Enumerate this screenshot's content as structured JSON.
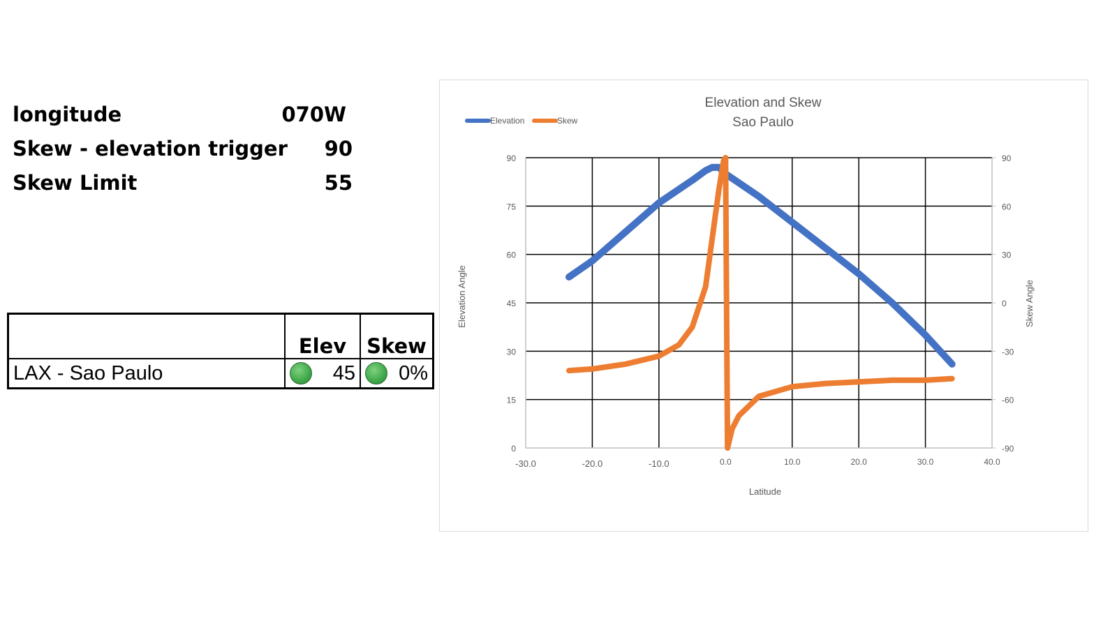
{
  "params": [
    {
      "label": "longitude",
      "value": "070W"
    },
    {
      "label": "Skew - elevation trigger",
      "value": "90"
    },
    {
      "label": "Skew Limit",
      "value": "55"
    }
  ],
  "status_table": {
    "headers": [
      "",
      "Elev",
      "Skew"
    ],
    "rows": [
      {
        "name": "LAX - Sao Paulo",
        "elev": "45",
        "elev_status": "green",
        "skew": "0%",
        "skew_status": "green"
      }
    ]
  },
  "colors": {
    "elevation": "#4472c4",
    "skew": "#ed7d31",
    "status_green": "#3fa84a"
  },
  "chart_data": {
    "type": "line",
    "title": "Elevation and Skew",
    "subtitle": "Sao Paulo",
    "xlabel": "Latitude",
    "ylabel": "Elevation Angle",
    "y2label": "Skew Angle",
    "xlim": [
      -30,
      40
    ],
    "ylim": [
      0,
      90
    ],
    "y2lim": [
      -90,
      90
    ],
    "x_ticks": [
      "-30.0",
      "-20.0",
      "-10.0",
      "0.0",
      "10.0",
      "20.0",
      "30.0",
      "40.0"
    ],
    "y_ticks": [
      "0",
      "15",
      "30",
      "45",
      "60",
      "75",
      "90"
    ],
    "y2_ticks": [
      "-90",
      "-60",
      "-30",
      "0",
      "30",
      "60",
      "90"
    ],
    "grid": true,
    "legend_position": "top-left",
    "legend": [
      "Elevation",
      "Skew"
    ],
    "series": [
      {
        "name": "Elevation",
        "axis": "left",
        "x": [
          -23.5,
          -20,
          -15,
          -10,
          -5,
          -3,
          -2,
          -1,
          0,
          5,
          10,
          15,
          20,
          25,
          30,
          34
        ],
        "values": [
          53,
          58,
          67,
          76,
          83,
          86,
          87,
          87,
          85,
          78,
          70,
          62,
          54,
          45,
          35,
          26
        ]
      },
      {
        "name": "Skew",
        "axis": "right",
        "x": [
          -23.5,
          -20,
          -15,
          -10,
          -7,
          -5,
          -3,
          -2,
          -1,
          -0.3,
          0,
          0.3,
          1,
          2,
          5,
          10,
          15,
          20,
          25,
          30,
          34
        ],
        "values": [
          -42,
          -41,
          -38,
          -33,
          -26,
          -15,
          10,
          40,
          70,
          88,
          90,
          -90,
          -78,
          -70,
          -58,
          -52,
          -50,
          -49,
          -48,
          -48,
          -47
        ]
      }
    ]
  }
}
